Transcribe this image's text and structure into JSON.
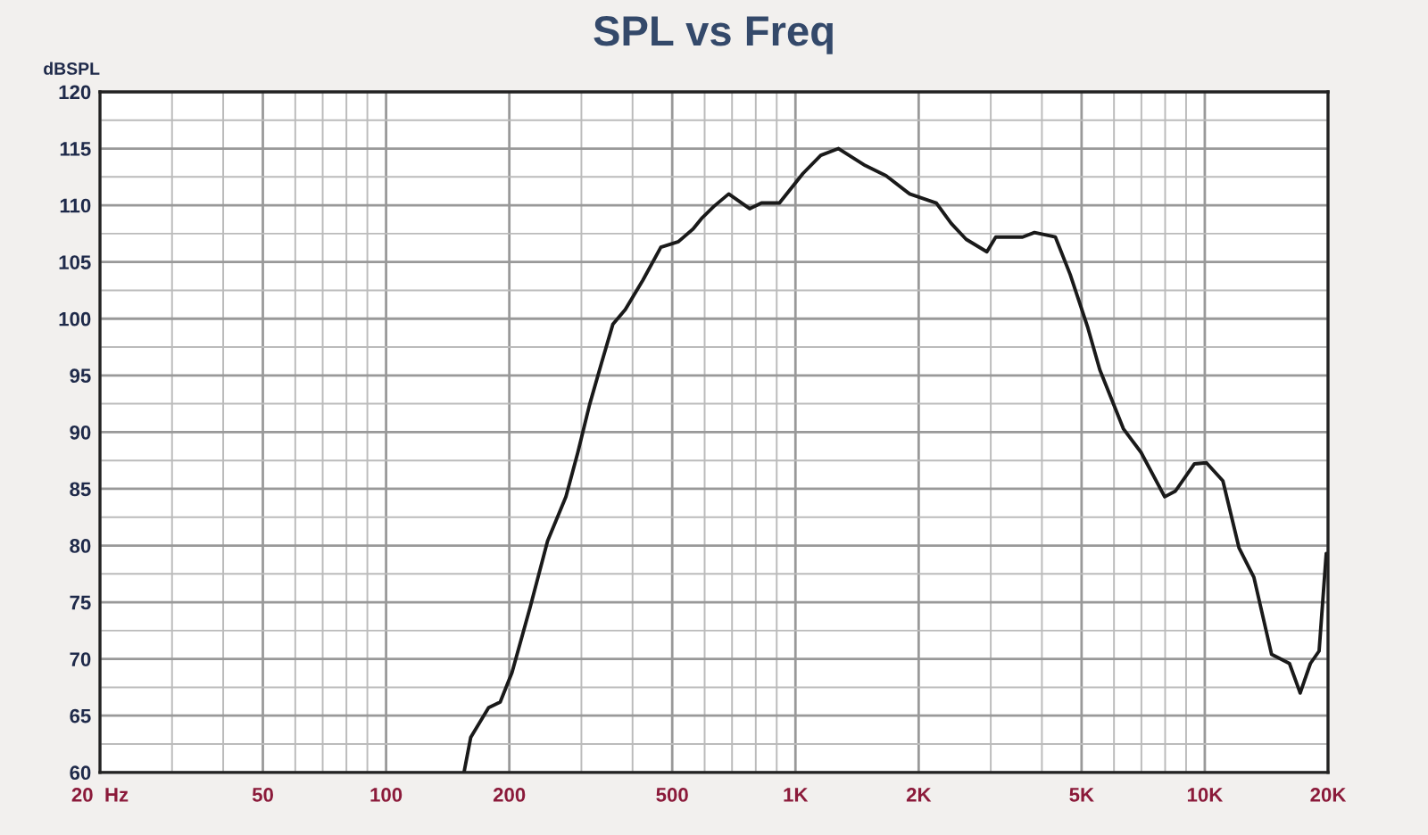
{
  "chart_data": {
    "type": "line",
    "title": "SPL vs Freq",
    "ylabel": "dBSPL",
    "log": "x",
    "grid": true,
    "line_style": "solid",
    "marker": "none",
    "xlim": [
      20,
      20000
    ],
    "ylim": [
      60,
      120
    ],
    "xticks": [
      {
        "value": 20,
        "label": "20  Hz"
      },
      50,
      100,
      200,
      500,
      {
        "value": 1000,
        "label": "1K"
      },
      {
        "value": 2000,
        "label": "2K"
      },
      {
        "value": 5000,
        "label": "5K"
      },
      {
        "value": 10000,
        "label": "10K"
      },
      {
        "value": 20000,
        "label": "20K"
      }
    ],
    "yticks": [
      60,
      65,
      70,
      75,
      80,
      85,
      90,
      95,
      100,
      105,
      110,
      115,
      120
    ],
    "series": [
      {
        "color": "#1a1a1a",
        "x": [
          155,
          161,
          178,
          190,
          203,
          225,
          248,
          275,
          294,
          314,
          336,
          358,
          384,
          424,
          469,
          518,
          562,
          592,
          632,
          687,
          773,
          826,
          914,
          1043,
          1153,
          1274,
          1481,
          1665,
          1901,
          2209,
          2401,
          2612,
          2935,
          3085,
          3588,
          3836,
          4315,
          4689,
          5180,
          5540,
          6325,
          6989,
          7980,
          8476,
          9434,
          10090,
          11070,
          12120,
          13180,
          14560,
          16100,
          17100,
          18110,
          19020,
          19800
        ],
        "values": [
          60,
          63.1,
          65.7,
          66.2,
          68.8,
          74.6,
          80.4,
          84.3,
          88.2,
          92.4,
          96.1,
          99.5,
          100.8,
          103.4,
          106.3,
          106.8,
          107.9,
          108.9,
          109.9,
          111,
          109.7,
          110.2,
          110.2,
          112.8,
          114.4,
          115,
          113.5,
          112.6,
          111,
          110.2,
          108.4,
          107,
          105.9,
          107.2,
          107.2,
          107.6,
          107.2,
          103.9,
          99.2,
          95.5,
          90.3,
          88.2,
          84.3,
          84.8,
          87.2,
          87.3,
          85.7,
          79.8,
          77.2,
          70.4,
          69.6,
          67,
          69.6,
          70.7,
          79.3
        ]
      }
    ]
  }
}
